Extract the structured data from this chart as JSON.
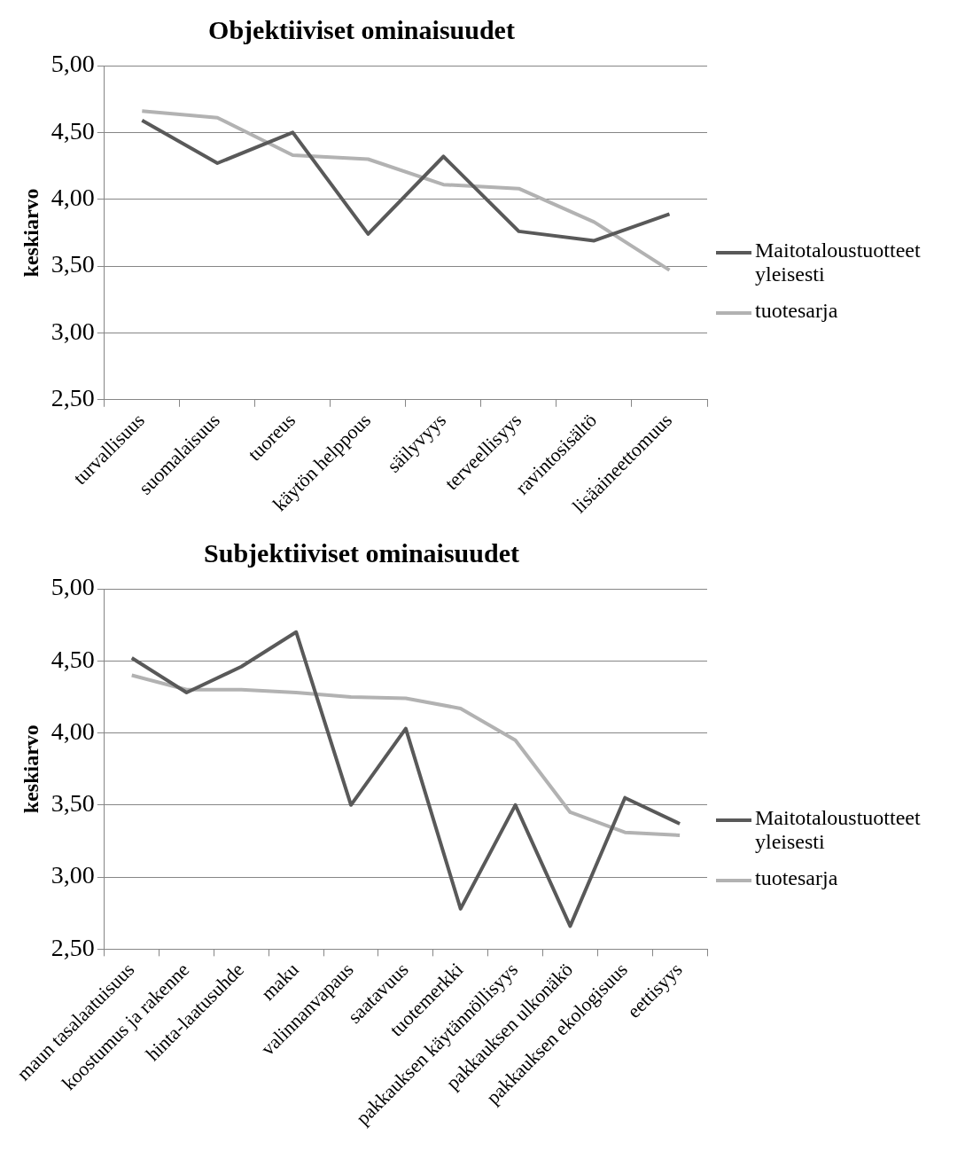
{
  "chart_data": [
    {
      "type": "line",
      "title": "Objektiiviset ominaisuudet",
      "ylabel": "keskiarvo",
      "categories": [
        "turvallisuus",
        "suomalaisuus",
        "tuoreus",
        "käytön helppous",
        "säilyvyys",
        "terveellisyys",
        "ravintosisältö",
        "lisäaineettomuus"
      ],
      "series": [
        {
          "name": "Maitotaloustuotteet yleisesti",
          "color": "#595959",
          "values": [
            4.59,
            4.27,
            4.5,
            3.74,
            4.32,
            3.76,
            3.69,
            3.89
          ]
        },
        {
          "name": "tuotesarja",
          "color": "#b2b2b2",
          "values": [
            4.66,
            4.61,
            4.33,
            4.3,
            4.11,
            4.08,
            3.83,
            3.47
          ]
        }
      ],
      "ylim": [
        2.5,
        5
      ],
      "yticks": [
        {
          "value": 2.5,
          "label": "2,50"
        },
        {
          "value": 3,
          "label": "3,00"
        },
        {
          "value": 3.5,
          "label": "3,50"
        },
        {
          "value": 4,
          "label": "4,00"
        },
        {
          "value": 4.5,
          "label": "4,50"
        },
        {
          "value": 5,
          "label": "5,00"
        }
      ],
      "grid": "y",
      "legend": "right",
      "marker": "none",
      "line_style": "solid"
    },
    {
      "type": "line",
      "title": "Subjektiiviset ominaisuudet",
      "ylabel": "keskiarvo",
      "categories": [
        "maun tasalaatuisuus",
        "koostumus ja rakenne",
        "hinta-laatusuhde",
        "maku",
        "valinnanvapaus",
        "saatavuus",
        "tuotemerkki",
        "pakkauksen käytännöllisyys",
        "pakkauksen ulkonäkö",
        "pakkauksen ekologisuus",
        "eettisyys"
      ],
      "series": [
        {
          "name": "Maitotaloustuotteet yleisesti",
          "color": "#595959",
          "values": [
            4.52,
            4.28,
            4.46,
            4.7,
            3.5,
            4.03,
            2.78,
            3.5,
            2.66,
            3.55,
            3.37
          ]
        },
        {
          "name": "tuotesarja",
          "color": "#b2b2b2",
          "values": [
            4.4,
            4.3,
            4.3,
            4.28,
            4.25,
            4.24,
            4.17,
            3.95,
            3.45,
            3.31,
            3.29
          ]
        }
      ],
      "ylim": [
        2.5,
        5
      ],
      "yticks": [
        {
          "value": 2.5,
          "label": "2,50"
        },
        {
          "value": 3,
          "label": "3,00"
        },
        {
          "value": 3.5,
          "label": "3,50"
        },
        {
          "value": 4,
          "label": "4,00"
        },
        {
          "value": 4.5,
          "label": "4,50"
        },
        {
          "value": 5,
          "label": "5,00"
        }
      ],
      "grid": "y",
      "legend": "right",
      "marker": "none",
      "line_style": "solid"
    }
  ]
}
